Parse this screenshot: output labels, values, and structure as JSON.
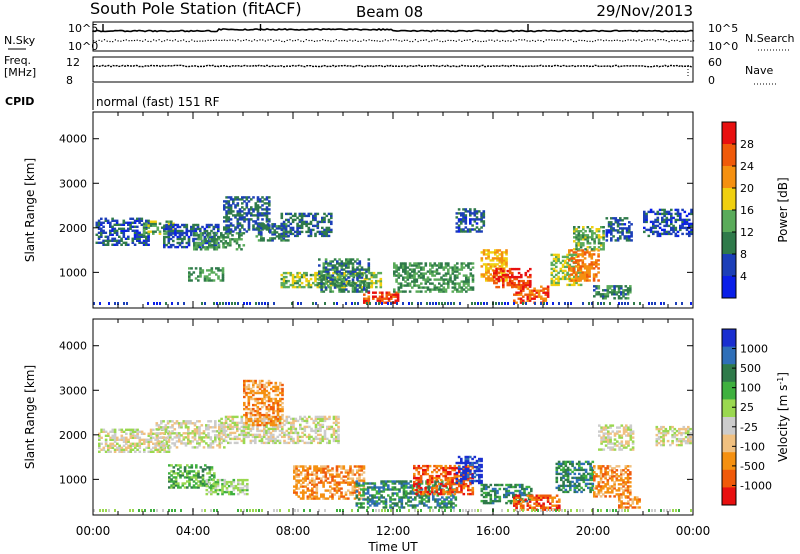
{
  "header": {
    "station": "South Pole Station (fitACF)",
    "beam": "Beam 08",
    "date": "29/Nov/2013"
  },
  "strips": {
    "nsky_label": "N.Sky",
    "nsky_ticks": [
      "10^5",
      "10^0"
    ],
    "nsearch_label": "N.Search",
    "nsearch_ticks": [
      "10^5",
      "10^0"
    ],
    "freq_label": "Freq.",
    "freq_unit": "[MHz]",
    "freq_ticks": [
      "12",
      "8"
    ],
    "nave_label": "Nave",
    "nave_ticks": [
      "60",
      "0"
    ],
    "cpid_label": "CPID",
    "cpid_value": "normal (fast) 151 RF"
  },
  "colors": {
    "power": [
      "#0a1fe8",
      "#1c3fb8",
      "#2f7a4a",
      "#5aab5a",
      "#f0d010",
      "#f59010",
      "#f05a0a",
      "#e81010"
    ],
    "velocity": [
      "#e81010",
      "#f05a0a",
      "#f59010",
      "#f0c080",
      "#cccccc",
      "#9ad850",
      "#3fb03f",
      "#2f7a4a",
      "#2f6fb8",
      "#1a2fd0"
    ]
  },
  "chart_data": [
    {
      "type": "heatmap",
      "title": "",
      "xlabel": "",
      "ylabel": "Slant Range [km]",
      "x_ticks": [
        "00:00",
        "04:00",
        "08:00",
        "12:00",
        "16:00",
        "20:00",
        "00:00"
      ],
      "y_ticks": [
        "1000",
        "2000",
        "3000",
        "4000"
      ],
      "ylim": [
        200,
        4600
      ],
      "xlim_hours": [
        0,
        24
      ],
      "colorbar_label": "Power [dB]",
      "colorbar_ticks": [
        "4",
        "8",
        "12",
        "16",
        "20",
        "24",
        "28"
      ],
      "colorbar_range": [
        0,
        32
      ],
      "regions": [
        {
          "t": [
            0.1,
            2.2
          ],
          "r": [
            1600,
            2200
          ],
          "v": 7
        },
        {
          "t": [
            2.0,
            3.2
          ],
          "r": [
            1850,
            2150
          ],
          "v": 13
        },
        {
          "t": [
            2.8,
            5.0
          ],
          "r": [
            1550,
            2050
          ],
          "v": 7
        },
        {
          "t": [
            4.0,
            6.0
          ],
          "r": [
            1500,
            1900
          ],
          "v": 12
        },
        {
          "t": [
            5.2,
            7.0
          ],
          "r": [
            1900,
            2700
          ],
          "v": 8
        },
        {
          "t": [
            6.5,
            7.8
          ],
          "r": [
            1700,
            2100
          ],
          "v": 9
        },
        {
          "t": [
            7.5,
            9.5
          ],
          "r": [
            1800,
            2300
          ],
          "v": 8
        },
        {
          "t": [
            3.8,
            5.2
          ],
          "r": [
            800,
            1100
          ],
          "v": 12
        },
        {
          "t": [
            7.5,
            11.5
          ],
          "r": [
            650,
            1000
          ],
          "v": 15
        },
        {
          "t": [
            9.0,
            11.0
          ],
          "r": [
            550,
            1300
          ],
          "v": 10
        },
        {
          "t": [
            10.8,
            12.2
          ],
          "r": [
            300,
            550
          ],
          "v": 27
        },
        {
          "t": [
            12.0,
            15.2
          ],
          "r": [
            550,
            1200
          ],
          "v": 12
        },
        {
          "t": [
            14.5,
            15.6
          ],
          "r": [
            1900,
            2400
          ],
          "v": 7
        },
        {
          "t": [
            15.5,
            16.5
          ],
          "r": [
            800,
            1500
          ],
          "v": 20
        },
        {
          "t": [
            16.0,
            17.5
          ],
          "r": [
            650,
            1100
          ],
          "v": 28
        },
        {
          "t": [
            16.8,
            18.2
          ],
          "r": [
            300,
            700
          ],
          "v": 26
        },
        {
          "t": [
            18.3,
            19.5
          ],
          "r": [
            700,
            1400
          ],
          "v": 16
        },
        {
          "t": [
            19.0,
            20.2
          ],
          "r": [
            800,
            1500
          ],
          "v": 24
        },
        {
          "t": [
            19.2,
            20.4
          ],
          "r": [
            1500,
            2000
          ],
          "v": 14
        },
        {
          "t": [
            20.0,
            21.5
          ],
          "r": [
            400,
            700
          ],
          "v": 11
        },
        {
          "t": [
            20.5,
            21.5
          ],
          "r": [
            1700,
            2200
          ],
          "v": 7
        },
        {
          "t": [
            22.0,
            23.9
          ],
          "r": [
            1800,
            2400
          ],
          "v": 6
        }
      ]
    },
    {
      "type": "heatmap",
      "title": "",
      "xlabel": "Time UT",
      "ylabel": "Slant Range [km]",
      "x_ticks": [
        "00:00",
        "04:00",
        "08:00",
        "12:00",
        "16:00",
        "20:00",
        "00:00"
      ],
      "y_ticks": [
        "1000",
        "2000",
        "3000",
        "4000"
      ],
      "ylim": [
        200,
        4600
      ],
      "xlim_hours": [
        0,
        24
      ],
      "colorbar_label": "Velocity [m s^-1]",
      "colorbar_ticks": [
        "1000",
        "500",
        "100",
        "25",
        "-25",
        "-100",
        "-500",
        "-1000"
      ],
      "regions": [
        {
          "t": [
            0.2,
            3.0
          ],
          "r": [
            1600,
            2100
          ],
          "v": 4
        },
        {
          "t": [
            2.5,
            5.2
          ],
          "r": [
            1700,
            2300
          ],
          "v": 4
        },
        {
          "t": [
            5.0,
            9.8
          ],
          "r": [
            1800,
            2400
          ],
          "v": 4
        },
        {
          "t": [
            6.0,
            7.6
          ],
          "r": [
            2200,
            3200
          ],
          "v": 2
        },
        {
          "t": [
            3.0,
            4.8
          ],
          "r": [
            800,
            1300
          ],
          "v": 6
        },
        {
          "t": [
            4.5,
            6.2
          ],
          "r": [
            650,
            1000
          ],
          "v": 5
        },
        {
          "t": [
            8.0,
            10.8
          ],
          "r": [
            550,
            1300
          ],
          "v": 2
        },
        {
          "t": [
            10.5,
            14.5
          ],
          "r": [
            350,
            950
          ],
          "v": 7
        },
        {
          "t": [
            12.8,
            15.2
          ],
          "r": [
            650,
            1300
          ],
          "v": 1
        },
        {
          "t": [
            14.5,
            15.5
          ],
          "r": [
            900,
            1500
          ],
          "v": 9
        },
        {
          "t": [
            15.5,
            17.5
          ],
          "r": [
            450,
            900
          ],
          "v": 7
        },
        {
          "t": [
            16.8,
            18.6
          ],
          "r": [
            300,
            650
          ],
          "v": 1
        },
        {
          "t": [
            18.5,
            20.0
          ],
          "r": [
            700,
            1400
          ],
          "v": 7
        },
        {
          "t": [
            20.0,
            21.5
          ],
          "r": [
            600,
            1300
          ],
          "v": 2
        },
        {
          "t": [
            21.0,
            21.9
          ],
          "r": [
            350,
            600
          ],
          "v": 2
        },
        {
          "t": [
            20.2,
            21.6
          ],
          "r": [
            1650,
            2200
          ],
          "v": 4
        },
        {
          "t": [
            22.5,
            23.9
          ],
          "r": [
            1750,
            2200
          ],
          "v": 4
        }
      ]
    }
  ]
}
